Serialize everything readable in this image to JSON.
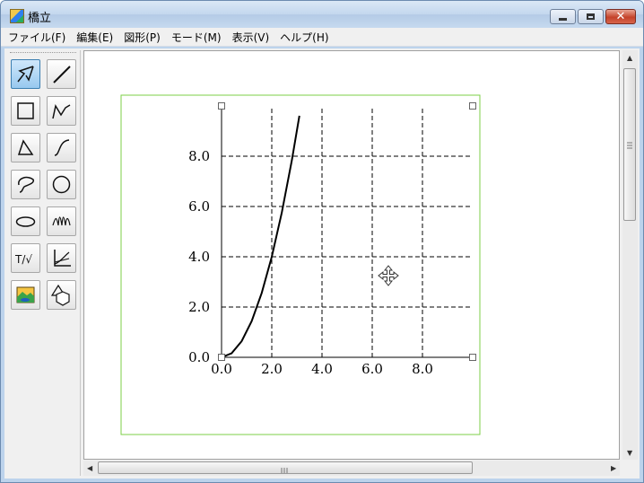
{
  "window": {
    "title": "橋立",
    "icon": "app-icon"
  },
  "menu": [
    {
      "label": "ファイル(F)"
    },
    {
      "label": "編集(E)"
    },
    {
      "label": "図形(P)"
    },
    {
      "label": "モード(M)"
    },
    {
      "label": "表示(V)"
    },
    {
      "label": "ヘルプ(H)"
    }
  ],
  "tools": [
    {
      "name": "select-arrow-tool",
      "icon": "select-arrow-icon",
      "selected": true
    },
    {
      "name": "line-tool",
      "icon": "line-icon"
    },
    {
      "name": "rectangle-tool",
      "icon": "rectangle-icon"
    },
    {
      "name": "polyline-tool",
      "icon": "polyline-icon"
    },
    {
      "name": "triangle-tool",
      "icon": "triangle-icon"
    },
    {
      "name": "curve-tool",
      "icon": "curve-icon"
    },
    {
      "name": "freeform-tool",
      "icon": "freeform-icon"
    },
    {
      "name": "circle-tool",
      "icon": "circle-icon"
    },
    {
      "name": "ellipse-tool",
      "icon": "ellipse-icon"
    },
    {
      "name": "wave-tool",
      "icon": "wave-icon"
    },
    {
      "name": "text-math-tool",
      "icon": "text-math-icon",
      "label": "T/√"
    },
    {
      "name": "graph-tool",
      "icon": "graph-axes-icon"
    },
    {
      "name": "image-tool",
      "icon": "image-icon"
    },
    {
      "name": "shapes-tool",
      "icon": "shapes-icon"
    }
  ],
  "graph": {
    "x_ticks": [
      "0.0",
      "2.0",
      "4.0",
      "6.0",
      "8.0"
    ],
    "y_ticks": [
      "0.0",
      "2.0",
      "4.0",
      "6.0",
      "8.0"
    ],
    "chart_data": {
      "type": "line",
      "series": [
        {
          "x": [
            0,
            0.4,
            0.8,
            1.2,
            1.6,
            2.0,
            2.4,
            2.8,
            3.1
          ],
          "y": [
            0,
            0.16,
            0.64,
            1.44,
            2.56,
            4.0,
            5.76,
            7.84,
            9.61
          ]
        }
      ],
      "xlim": [
        0,
        10
      ],
      "ylim": [
        0,
        10
      ],
      "grid": true,
      "grid_style": "dashed"
    },
    "selection_color": "#7ccf47",
    "cursor_icon": "move-cursor-icon"
  },
  "scrollbars": {
    "vertical_thumb_icon": "grip-icon",
    "horizontal_thumb_icon": "grip-icon"
  }
}
